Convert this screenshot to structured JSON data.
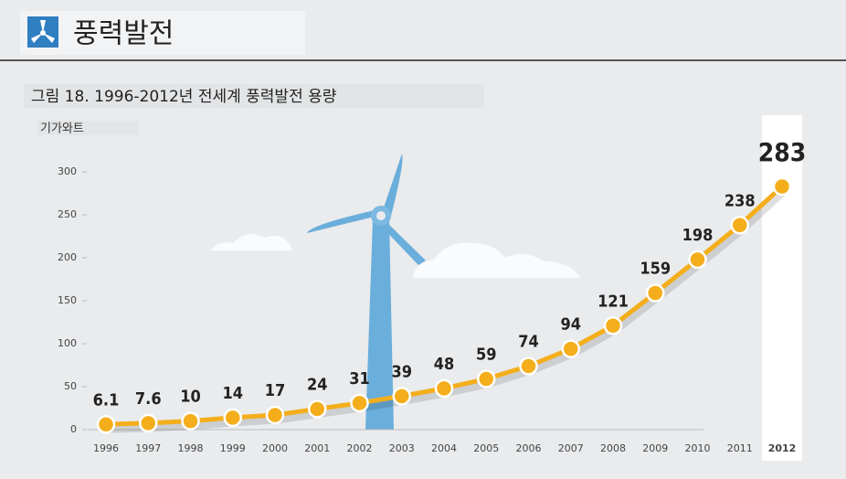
{
  "header": {
    "title": "풍력발전"
  },
  "chart_data": {
    "type": "line",
    "title": "그림 18. 1996-2012년 전세계 풍력발전 용량",
    "y_label": "기가와트",
    "categories": [
      "1996",
      "1997",
      "1998",
      "1999",
      "2000",
      "2001",
      "2002",
      "2003",
      "2004",
      "2005",
      "2006",
      "2007",
      "2008",
      "2009",
      "2010",
      "2011",
      "2012"
    ],
    "values": [
      6.1,
      7.6,
      10,
      14,
      17,
      24,
      31,
      39,
      48,
      59,
      74,
      94,
      121,
      159,
      198,
      238,
      283
    ],
    "color": "#f4ae1b",
    "ylim": [
      0,
      300
    ],
    "yticks": [
      0,
      50,
      100,
      150,
      200,
      250,
      300
    ]
  }
}
